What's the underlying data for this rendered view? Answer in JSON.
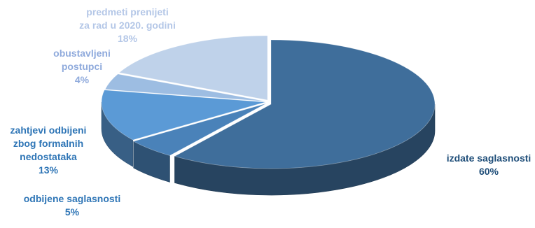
{
  "chart_data": {
    "type": "pie",
    "title": "",
    "style": "3d-exploded",
    "legend": "none",
    "slices": [
      {
        "label_lines": [
          "izdate saglasnosti"
        ],
        "value": 60,
        "value_label": "60%",
        "color": "#3f6e9b",
        "text_color": "#1f4e79"
      },
      {
        "label_lines": [
          "odbijene saglasnosti"
        ],
        "value": 5,
        "value_label": "5%",
        "color": "#4a82b9",
        "text_color": "#2e75b6"
      },
      {
        "label_lines": [
          "zahtjevi odbijeni",
          "zbog formalnih",
          "nedostataka"
        ],
        "value": 13,
        "value_label": "13%",
        "color": "#5b9ad6",
        "text_color": "#2e75b6"
      },
      {
        "label_lines": [
          "obustavljeni",
          "postupci"
        ],
        "value": 4,
        "value_label": "4%",
        "color": "#9dbde2",
        "text_color": "#8faadc"
      },
      {
        "label_lines": [
          "predmeti prenijeti",
          "za rad u 2020. godini"
        ],
        "value": 18,
        "value_label": "18%",
        "color": "#bfd2ea",
        "text_color": "#b4c7e7"
      }
    ]
  }
}
